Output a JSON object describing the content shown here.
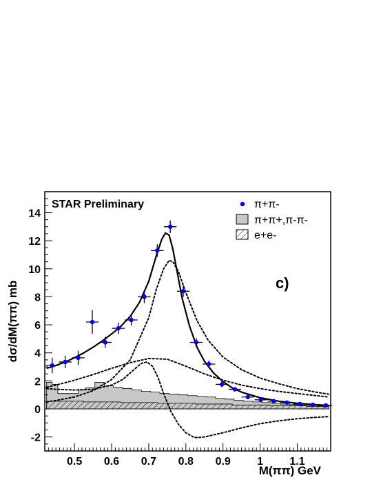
{
  "chart_data": {
    "type": "line",
    "annotation": "STAR Preliminary",
    "panel_label": "c)",
    "xlabel": "M(ππ) GeV",
    "ylabel": "dσ/dM(ππ) mb",
    "xlim": [
      0.42,
      1.19
    ],
    "ylim": [
      -3,
      15.5
    ],
    "x_ticks": [
      0.5,
      0.6,
      0.7,
      0.8,
      0.9,
      1.0,
      1.1
    ],
    "x_tick_labels": [
      "0.5",
      "0.6",
      "0.7",
      "0.8",
      "0.9",
      "1",
      "1.1"
    ],
    "y_ticks": [
      -2,
      0,
      2,
      4,
      6,
      8,
      10,
      12,
      14
    ],
    "y_tick_labels": [
      "-2",
      "0",
      "2",
      "4",
      "6",
      "8",
      "10",
      "12",
      "14"
    ],
    "legend": {
      "placement": "top-right",
      "entries": [
        {
          "label": "π+π-",
          "marker": "point"
        },
        {
          "label": "π+π+,π-π-",
          "marker": "filled-box"
        },
        {
          "label": "e+e-",
          "marker": "hatched-box"
        }
      ]
    },
    "series": [
      {
        "name": "π+π-",
        "style": "points",
        "color": "#0000ee",
        "points": [
          {
            "x": 0.44,
            "y": 3.1,
            "yerr": 0.55,
            "xerr": 0.017
          },
          {
            "x": 0.475,
            "y": 3.35,
            "yerr": 0.45,
            "xerr": 0.017
          },
          {
            "x": 0.51,
            "y": 3.65,
            "yerr": 0.5,
            "xerr": 0.017
          },
          {
            "x": 0.548,
            "y": 6.2,
            "yerr": 0.85,
            "xerr": 0.017
          },
          {
            "x": 0.583,
            "y": 4.75,
            "yerr": 0.4,
            "xerr": 0.017
          },
          {
            "x": 0.618,
            "y": 5.75,
            "yerr": 0.4,
            "xerr": 0.017
          },
          {
            "x": 0.653,
            "y": 6.35,
            "yerr": 0.4,
            "xerr": 0.017
          },
          {
            "x": 0.688,
            "y": 8.0,
            "yerr": 0.45,
            "xerr": 0.017
          },
          {
            "x": 0.723,
            "y": 11.3,
            "yerr": 0.45,
            "xerr": 0.017
          },
          {
            "x": 0.758,
            "y": 13.0,
            "yerr": 0.45,
            "xerr": 0.017
          },
          {
            "x": 0.793,
            "y": 8.4,
            "yerr": 0.4,
            "xerr": 0.017
          },
          {
            "x": 0.828,
            "y": 4.75,
            "yerr": 0.3,
            "xerr": 0.017
          },
          {
            "x": 0.862,
            "y": 3.2,
            "yerr": 0.25,
            "xerr": 0.017
          },
          {
            "x": 0.897,
            "y": 1.75,
            "yerr": 0.2,
            "xerr": 0.017
          },
          {
            "x": 0.932,
            "y": 1.4,
            "yerr": 0.15,
            "xerr": 0.017
          },
          {
            "x": 0.967,
            "y": 0.85,
            "yerr": 0.15,
            "xerr": 0.017
          },
          {
            "x": 1.002,
            "y": 0.65,
            "yerr": 0.1,
            "xerr": 0.017
          },
          {
            "x": 1.037,
            "y": 0.55,
            "yerr": 0.1,
            "xerr": 0.017
          },
          {
            "x": 1.072,
            "y": 0.45,
            "yerr": 0.1,
            "xerr": 0.017
          },
          {
            "x": 1.107,
            "y": 0.35,
            "yerr": 0.1,
            "xerr": 0.017
          },
          {
            "x": 1.142,
            "y": 0.3,
            "yerr": 0.1,
            "xerr": 0.017
          },
          {
            "x": 1.177,
            "y": 0.25,
            "yerr": 0.1,
            "xerr": 0.017
          }
        ]
      },
      {
        "name": "",
        "style": "solid-curve",
        "color": "#000000",
        "x": [
          0.425,
          0.45,
          0.475,
          0.5,
          0.525,
          0.55,
          0.575,
          0.6,
          0.625,
          0.65,
          0.675,
          0.7,
          0.72,
          0.735,
          0.745,
          0.755,
          0.765,
          0.775,
          0.79,
          0.81,
          0.83,
          0.85,
          0.875,
          0.9,
          0.925,
          0.95,
          1.0,
          1.05,
          1.1,
          1.15,
          1.185
        ],
        "y": [
          2.9,
          3.1,
          3.35,
          3.65,
          4.0,
          4.4,
          4.85,
          5.35,
          5.9,
          6.6,
          7.6,
          9.1,
          10.9,
          12.1,
          12.55,
          12.4,
          11.4,
          10.0,
          7.9,
          5.9,
          4.4,
          3.4,
          2.55,
          1.95,
          1.5,
          1.2,
          0.8,
          0.55,
          0.4,
          0.3,
          0.25
        ]
      },
      {
        "name": "",
        "style": "dotted-curve",
        "color": "#000000",
        "x": [
          0.425,
          0.45,
          0.5,
          0.55,
          0.6,
          0.65,
          0.7,
          0.72,
          0.74,
          0.755,
          0.765,
          0.78,
          0.8,
          0.83,
          0.86,
          0.9,
          0.95,
          1.0,
          1.05,
          1.1,
          1.15,
          1.185
        ],
        "y": [
          0.5,
          0.6,
          0.85,
          1.3,
          2.1,
          3.5,
          6.5,
          8.5,
          10.0,
          10.6,
          10.5,
          9.8,
          8.3,
          6.3,
          4.9,
          3.7,
          2.8,
          2.2,
          1.8,
          1.45,
          1.2,
          1.05
        ]
      },
      {
        "name": "",
        "style": "dotted-curve",
        "color": "#000000",
        "x": [
          0.425,
          0.45,
          0.5,
          0.55,
          0.6,
          0.65,
          0.7,
          0.75,
          0.8,
          0.85,
          0.9,
          0.95,
          1.0,
          1.05,
          1.1,
          1.15,
          1.185
        ],
        "y": [
          1.55,
          1.7,
          2.05,
          2.45,
          2.9,
          3.3,
          3.6,
          3.55,
          3.05,
          2.5,
          2.05,
          1.7,
          1.45,
          1.25,
          1.1,
          0.95,
          0.85
        ]
      },
      {
        "name": "",
        "style": "dotted-curve",
        "color": "#000000",
        "x": [
          0.425,
          0.45,
          0.5,
          0.55,
          0.6,
          0.63,
          0.66,
          0.68,
          0.695,
          0.71,
          0.725,
          0.74,
          0.76,
          0.78,
          0.8,
          0.82,
          0.83,
          0.85,
          0.9,
          0.95,
          1.0,
          1.05,
          1.1,
          1.15,
          1.185
        ],
        "y": [
          1.45,
          1.4,
          1.35,
          1.4,
          1.7,
          2.1,
          2.8,
          3.25,
          3.35,
          3.05,
          2.25,
          1.1,
          -0.2,
          -1.1,
          -1.7,
          -2.0,
          -2.05,
          -2.0,
          -1.7,
          -1.35,
          -1.05,
          -0.85,
          -0.7,
          -0.6,
          -0.55
        ]
      },
      {
        "name": "π+π+,π-π-",
        "style": "filled-histogram",
        "color": "#c8c8c8",
        "bin_edges": [
          0.425,
          0.44,
          0.455,
          0.51,
          0.53,
          0.555,
          0.58,
          0.605,
          0.63,
          0.655,
          0.68,
          0.705,
          0.73,
          0.755,
          0.78,
          0.805,
          0.83,
          0.855,
          0.88,
          0.905,
          0.93,
          0.955,
          0.98,
          1.005,
          1.03,
          1.055,
          1.08,
          1.105,
          1.13,
          1.155,
          1.185
        ],
        "values": [
          1.9,
          1.75,
          1.1,
          1.35,
          1.5,
          1.9,
          1.65,
          1.55,
          1.45,
          1.35,
          1.25,
          1.2,
          1.1,
          1.05,
          1.0,
          0.95,
          0.9,
          0.85,
          0.75,
          0.7,
          0.6,
          0.55,
          0.5,
          0.45,
          0.4,
          0.35,
          0.3,
          0.28,
          0.25,
          0.22
        ]
      },
      {
        "name": "e+e-",
        "style": "hatched-histogram",
        "color": "#000000",
        "bin_edges": [
          0.425,
          0.525,
          0.625,
          0.725,
          0.825,
          0.925,
          1.025,
          1.125,
          1.185
        ],
        "values": [
          0.55,
          0.5,
          0.45,
          0.4,
          0.35,
          0.28,
          0.22,
          0.18
        ]
      }
    ]
  }
}
